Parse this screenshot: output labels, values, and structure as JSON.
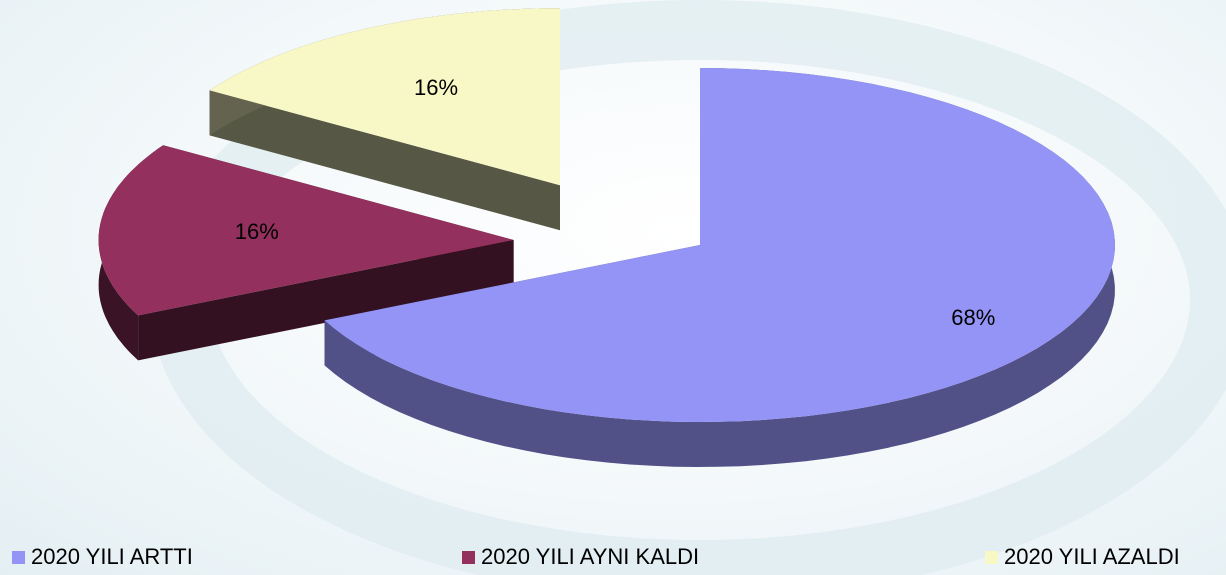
{
  "chart_data": {
    "type": "pie",
    "pie_style": "3d-exploded",
    "categories": [
      "2020 YILI ARTTI",
      "2020 YILI AYNI KALDI",
      "2020 YILI AZALDI"
    ],
    "values": [
      68,
      16,
      16
    ],
    "value_labels": [
      "68%",
      "16%",
      "16%"
    ],
    "colors": [
      "#9494f6",
      "#93305e",
      "#f8f8c6"
    ],
    "legend": "bottom"
  }
}
